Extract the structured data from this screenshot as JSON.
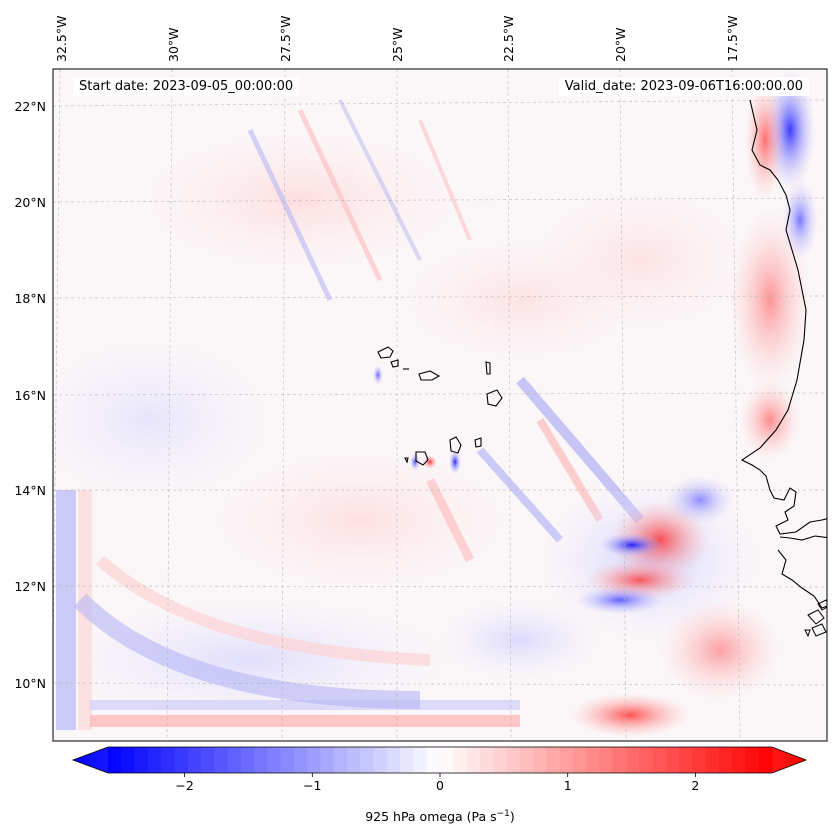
{
  "map": {
    "start_label": "Start date: 2023-09-05_00:00:00",
    "valid_label": "Valid_date: 2023-09-06T16:00:00.00",
    "lon_ticks": [
      "32.5°W",
      "30°W",
      "27.5°W",
      "25°W",
      "22.5°W",
      "20°W",
      "17.5°W"
    ],
    "lat_ticks": [
      "22°N",
      "20°N",
      "18°N",
      "16°N",
      "14°N",
      "12°N",
      "10°N"
    ],
    "extent": {
      "lon_min": -32.7,
      "lon_max": -15.2,
      "lat_min": 9.0,
      "lat_max": 22.7
    },
    "gridlines": true,
    "features": [
      "Cabo Verde islands",
      "West African coastline"
    ]
  },
  "colorbar": {
    "label_main": "925 hPa omega (Pa s",
    "label_exp": "−1",
    "label_tail": ")",
    "ticks": [
      "−2",
      "−1",
      "0",
      "1",
      "2"
    ],
    "tick_values": [
      -2,
      -1,
      0,
      1,
      2
    ],
    "range": [
      -2.6,
      2.6
    ],
    "extend": "both",
    "colormap": "bwr",
    "colors": {
      "low": "#0000ff",
      "mid": "#ffffff",
      "high": "#ff0000"
    }
  }
}
